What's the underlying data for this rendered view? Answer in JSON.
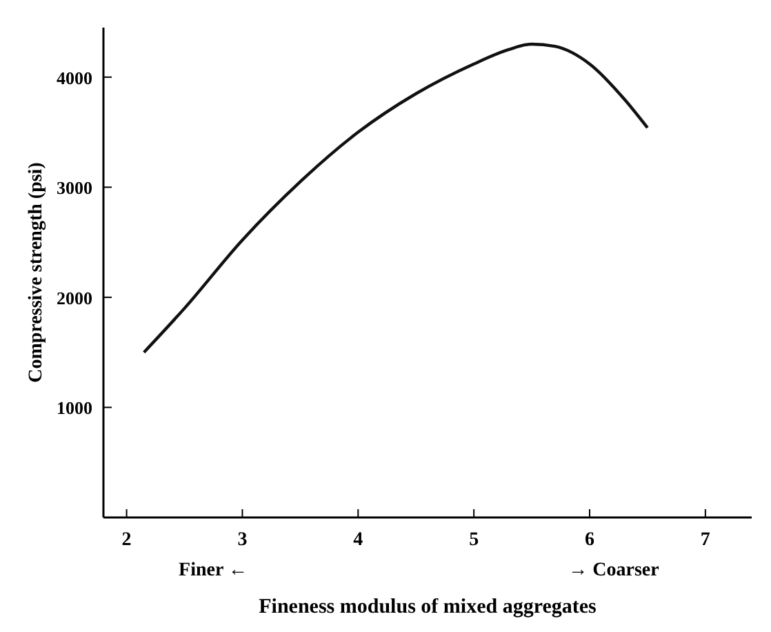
{
  "chart_data": {
    "type": "line",
    "xlabel": "Fineness modulus of mixed aggregates",
    "ylabel": "Compressive strength (psi)",
    "x": [
      2.15,
      2.5,
      3,
      3.5,
      4,
      4.5,
      5,
      5.3,
      5.5,
      5.7,
      6,
      6.3,
      6.5
    ],
    "series": [
      {
        "color": "#111111",
        "values": [
          1500,
          1900,
          2520,
          3050,
          3500,
          3850,
          4120,
          4250,
          4300,
          4280,
          4120,
          3800,
          3540
        ]
      }
    ],
    "xlim": [
      1.8,
      7.4
    ],
    "ylim": [
      0,
      4450
    ],
    "xticks": [
      2,
      3,
      4,
      5,
      6,
      7
    ],
    "yticks": [
      1000,
      2000,
      3000,
      4000
    ],
    "marker": "none",
    "line_style": "solid",
    "annotations": [
      "Finer ←",
      "→ Coarser"
    ]
  }
}
